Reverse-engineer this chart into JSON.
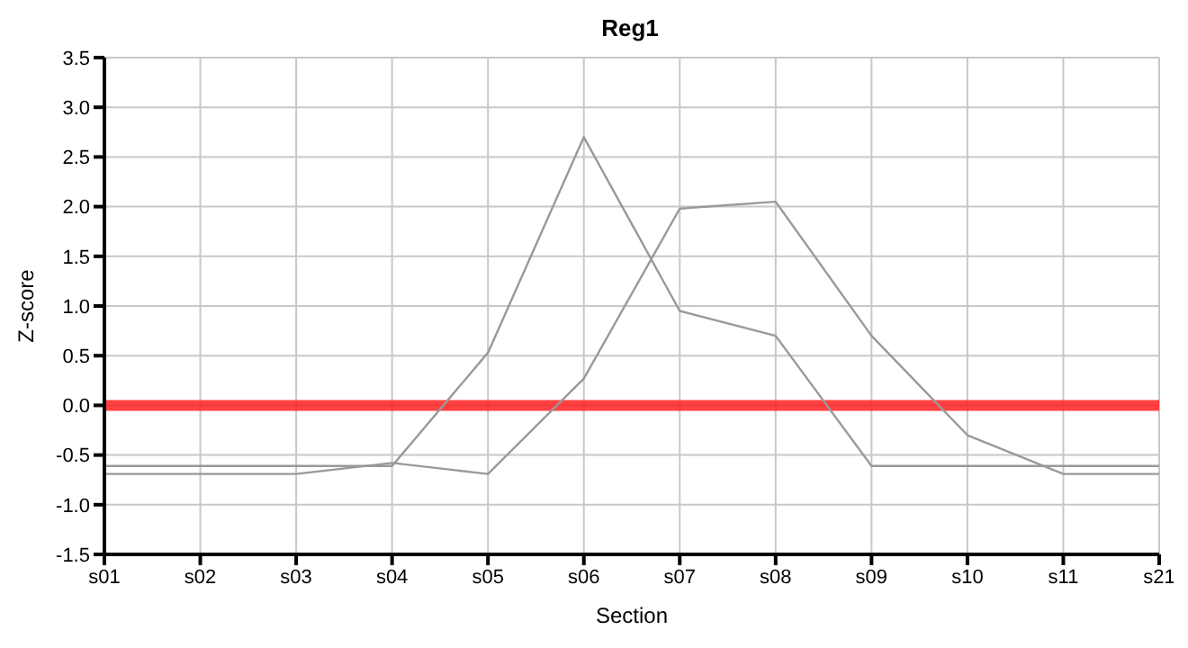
{
  "chart_data": {
    "type": "line",
    "title": "Reg1",
    "xlabel": "Section",
    "ylabel": "Z-score",
    "categories": [
      "s01",
      "s02",
      "s03",
      "s04",
      "s05",
      "s06",
      "s07",
      "s08",
      "s09",
      "s10",
      "s11",
      "s21"
    ],
    "series": [
      {
        "color": "#999999",
        "values": [
          -0.61,
          -0.61,
          -0.61,
          -0.61,
          0.53,
          2.7,
          0.95,
          0.7,
          -0.61,
          -0.61,
          -0.61,
          -0.61
        ]
      },
      {
        "color": "#999999",
        "values": [
          -0.69,
          -0.69,
          -0.69,
          -0.58,
          -0.69,
          0.27,
          1.98,
          2.05,
          0.7,
          -0.3,
          -0.69,
          -0.69
        ]
      }
    ],
    "ylim": [
      -1.5,
      3.5
    ],
    "yticks": [
      -1.5,
      {
        "value": -1,
        "label": "-1.0"
      },
      -0.5,
      {
        "value": 0,
        "label": "0.0"
      },
      0.5,
      {
        "value": 1,
        "label": "1.0"
      },
      1.5,
      {
        "value": 2,
        "label": "2.0"
      },
      2.5,
      {
        "value": 3,
        "label": "3.0"
      },
      3.5
    ],
    "ref_lines": [
      {
        "axis": "y",
        "value": 0,
        "color": "#ff2020"
      }
    ],
    "grid": true,
    "legend": false,
    "marker": "none",
    "line_style": "solid"
  }
}
